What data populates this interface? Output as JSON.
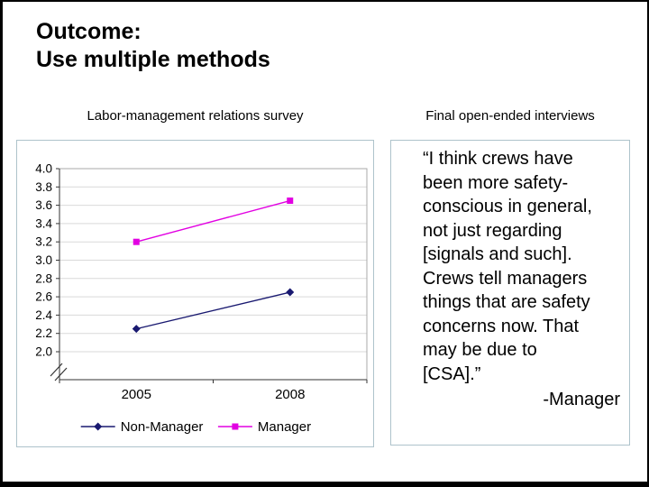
{
  "slide": {
    "title_line1": "Outcome:",
    "title_line2": "Use multiple methods"
  },
  "columns": {
    "left_header": "Labor-management relations survey",
    "right_header": "Final open-ended interviews"
  },
  "quote": {
    "text": "“I think crews have been more safety-conscious in general, not just regarding [signals and such]. Crews tell managers things that are safety concerns now. That may be due to [CSA].”",
    "attribution": "-Manager"
  },
  "chart_data": {
    "type": "line",
    "title": "",
    "xlabel": "",
    "ylabel": "",
    "categories": [
      "2005",
      "2008"
    ],
    "series": [
      {
        "name": "Non-Manager",
        "values": [
          2.25,
          2.65
        ],
        "color": "#191970",
        "marker": "diamond"
      },
      {
        "name": "Manager",
        "values": [
          3.2,
          3.65
        ],
        "color": "#e200e2",
        "marker": "square"
      }
    ],
    "ylim": [
      2.0,
      4.0
    ],
    "ytick_step": 0.2,
    "grid": true,
    "axis_break": true,
    "legend_position": "bottom"
  },
  "colors": {
    "panel_border": "#aec3cb",
    "gridline": "#d9d9d9",
    "axis": "#333333",
    "plot_border": "#aaaaaa",
    "text": "#000000"
  }
}
